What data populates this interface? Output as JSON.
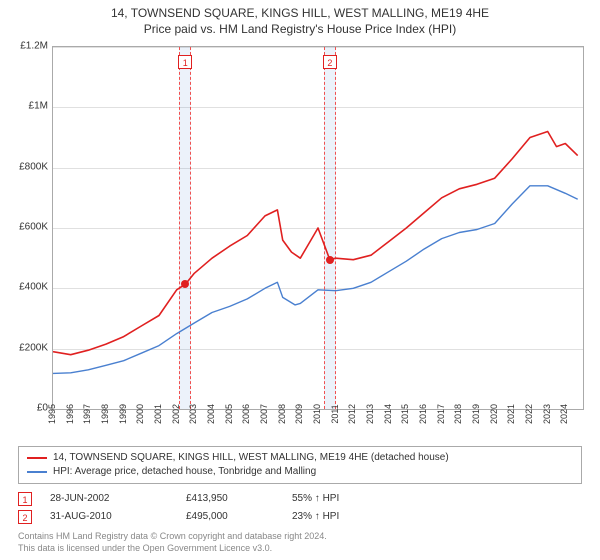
{
  "title_main": "14, TOWNSEND SQUARE, KINGS HILL, WEST MALLING, ME19 4HE",
  "title_sub": "Price paid vs. HM Land Registry's House Price Index (HPI)",
  "chart": {
    "type": "line",
    "background_color": "#ffffff",
    "grid_color": "#e0e0e0",
    "axis_color": "#aaaaaa",
    "y": {
      "min": 0,
      "max": 1200000,
      "step": 200000,
      "labels": [
        "£0",
        "£200K",
        "£400K",
        "£600K",
        "£800K",
        "£1M",
        "£1.2M"
      ],
      "label_fontsize": 10
    },
    "x": {
      "min": 1995,
      "max": 2025,
      "labels": [
        "1995",
        "1996",
        "1997",
        "1998",
        "1999",
        "2000",
        "2001",
        "2002",
        "2003",
        "2004",
        "2005",
        "2006",
        "2007",
        "2008",
        "2009",
        "2010",
        "2011",
        "2012",
        "2013",
        "2014",
        "2015",
        "2016",
        "2017",
        "2018",
        "2019",
        "2020",
        "2021",
        "2022",
        "2023",
        "2024"
      ],
      "label_fontsize": 9
    },
    "series": [
      {
        "name": "property",
        "label": "14, TOWNSEND SQUARE, KINGS HILL, WEST MALLING, ME19 4HE (detached house)",
        "color": "#e02020",
        "width": 1.6,
        "points": [
          [
            1995,
            190000
          ],
          [
            1996,
            180000
          ],
          [
            1997,
            195000
          ],
          [
            1998,
            215000
          ],
          [
            1999,
            240000
          ],
          [
            2000,
            275000
          ],
          [
            2001,
            310000
          ],
          [
            2002,
            395000
          ],
          [
            2002.5,
            413950
          ],
          [
            2003,
            450000
          ],
          [
            2004,
            500000
          ],
          [
            2005,
            540000
          ],
          [
            2006,
            575000
          ],
          [
            2007,
            640000
          ],
          [
            2007.7,
            660000
          ],
          [
            2008,
            560000
          ],
          [
            2008.5,
            520000
          ],
          [
            2009,
            500000
          ],
          [
            2009.6,
            560000
          ],
          [
            2010,
            600000
          ],
          [
            2010.67,
            495000
          ],
          [
            2011,
            500000
          ],
          [
            2012,
            495000
          ],
          [
            2013,
            510000
          ],
          [
            2014,
            555000
          ],
          [
            2015,
            600000
          ],
          [
            2016,
            650000
          ],
          [
            2017,
            700000
          ],
          [
            2018,
            730000
          ],
          [
            2019,
            745000
          ],
          [
            2020,
            765000
          ],
          [
            2021,
            830000
          ],
          [
            2022,
            900000
          ],
          [
            2023,
            920000
          ],
          [
            2023.5,
            870000
          ],
          [
            2024,
            880000
          ],
          [
            2024.7,
            840000
          ]
        ]
      },
      {
        "name": "hpi",
        "label": "HPI: Average price, detached house, Tonbridge and Malling",
        "color": "#4a80d0",
        "width": 1.4,
        "points": [
          [
            1995,
            118000
          ],
          [
            1996,
            120000
          ],
          [
            1997,
            130000
          ],
          [
            1998,
            145000
          ],
          [
            1999,
            160000
          ],
          [
            2000,
            185000
          ],
          [
            2001,
            210000
          ],
          [
            2002,
            250000
          ],
          [
            2003,
            285000
          ],
          [
            2004,
            320000
          ],
          [
            2005,
            340000
          ],
          [
            2006,
            365000
          ],
          [
            2007,
            400000
          ],
          [
            2007.7,
            420000
          ],
          [
            2008,
            370000
          ],
          [
            2008.7,
            345000
          ],
          [
            2009,
            350000
          ],
          [
            2010,
            395000
          ],
          [
            2011,
            392000
          ],
          [
            2012,
            400000
          ],
          [
            2013,
            420000
          ],
          [
            2014,
            455000
          ],
          [
            2015,
            490000
          ],
          [
            2016,
            530000
          ],
          [
            2017,
            565000
          ],
          [
            2018,
            585000
          ],
          [
            2019,
            595000
          ],
          [
            2020,
            615000
          ],
          [
            2021,
            680000
          ],
          [
            2022,
            740000
          ],
          [
            2023,
            740000
          ],
          [
            2024,
            715000
          ],
          [
            2024.7,
            695000
          ]
        ]
      }
    ],
    "events": [
      {
        "id": "1",
        "year": 2002.49,
        "price": 413950,
        "band_years": 0.35
      },
      {
        "id": "2",
        "year": 2010.67,
        "price": 495000,
        "band_years": 0.35
      }
    ],
    "event_band_color": "rgba(70,130,210,0.10)",
    "event_dash_color": "#f05050",
    "event_badge_border": "#e02020",
    "event_badge_text": "#e02020"
  },
  "legend": {
    "line1_label": "14, TOWNSEND SQUARE, KINGS HILL, WEST MALLING, ME19 4HE (detached house)",
    "line2_label": "HPI: Average price, detached house, Tonbridge and Malling",
    "fontsize": 10
  },
  "events_table": [
    {
      "id": "1",
      "date": "28-JUN-2002",
      "price": "£413,950",
      "delta": "55% ↑ HPI"
    },
    {
      "id": "2",
      "date": "31-AUG-2010",
      "price": "£495,000",
      "delta": "23% ↑ HPI"
    }
  ],
  "attribution": {
    "line1": "Contains HM Land Registry data © Crown copyright and database right 2024.",
    "line2": "This data is licensed under the Open Government Licence v3.0.",
    "color": "#888888",
    "fontsize": 9
  }
}
